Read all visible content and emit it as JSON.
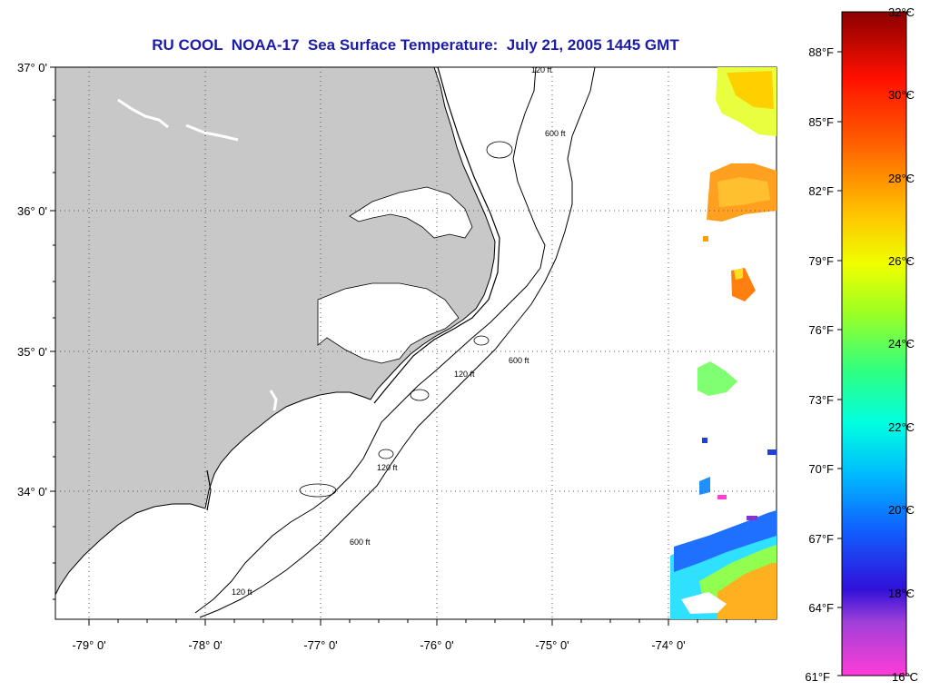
{
  "title": "RU COOL  NOAA-17  Sea Surface Temperature:  July 21, 2005 1445 GMT",
  "map": {
    "lat_labels": [
      "37° 0'",
      "36° 0'",
      "35° 0'",
      "34° 0'"
    ],
    "lon_labels": [
      "-79° 0'",
      "-78° 0'",
      "-77° 0'",
      "-76° 0'",
      "-75° 0'",
      "-74° 0'"
    ],
    "lat_range": [
      33.1,
      37.0
    ],
    "lon_range": [
      -79.3,
      -73.1
    ],
    "contour_labels": [
      "120 ft",
      "600 ft"
    ],
    "colors": {
      "land": "#c8c8c8",
      "ocean": "#ffffff",
      "coast": "#000000",
      "grid": "#555555"
    }
  },
  "colorbar": {
    "celsius_labels": [
      "32°C",
      "30°C",
      "28°C",
      "26°C",
      "24°C",
      "22°C",
      "20°C",
      "18°C",
      "16°C"
    ],
    "fahrenheit_labels": [
      "88°F",
      "85°F",
      "82°F",
      "79°F",
      "76°F",
      "73°F",
      "70°F",
      "67°F",
      "64°F",
      "61°F"
    ],
    "colors": [
      "#ff3cd8",
      "#8a3cd0",
      "#1818d8",
      "#1060ff",
      "#00c8ff",
      "#00ffb0",
      "#60ff40",
      "#d0ff00",
      "#ffd000",
      "#ff8000",
      "#ff1800",
      "#a00000"
    ]
  }
}
